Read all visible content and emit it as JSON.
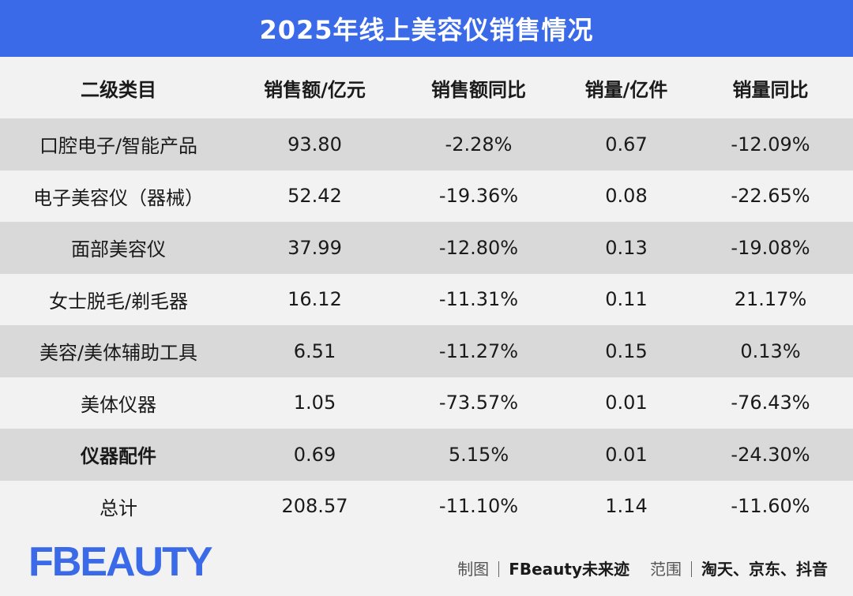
{
  "chart_data": {
    "type": "table",
    "title": "2025年线上美容仪销售情况",
    "columns": [
      "二级类目",
      "销售额/亿元",
      "销售额同比",
      "销量/亿件",
      "销量同比"
    ],
    "rows": [
      {
        "category": "口腔电子/智能产品",
        "sales": "93.80",
        "sales_yoy": "-2.28%",
        "volume": "0.67",
        "volume_yoy": "-12.09%"
      },
      {
        "category": "电子美容仪（器械）",
        "sales": "52.42",
        "sales_yoy": "-19.36%",
        "volume": "0.08",
        "volume_yoy": "-22.65%"
      },
      {
        "category": "面部美容仪",
        "sales": "37.99",
        "sales_yoy": "-12.80%",
        "volume": "0.13",
        "volume_yoy": "-19.08%"
      },
      {
        "category": "女士脱毛/剃毛器",
        "sales": "16.12",
        "sales_yoy": "-11.31%",
        "volume": "0.11",
        "volume_yoy": "21.17%"
      },
      {
        "category": "美容/美体辅助工具",
        "sales": "6.51",
        "sales_yoy": "-11.27%",
        "volume": "0.15",
        "volume_yoy": "0.13%"
      },
      {
        "category": "美体仪器",
        "sales": "1.05",
        "sales_yoy": "-73.57%",
        "volume": "0.01",
        "volume_yoy": "-76.43%"
      },
      {
        "category": "仪器配件",
        "sales": "0.69",
        "sales_yoy": "5.15%",
        "volume": "0.01",
        "volume_yoy": "-24.30%"
      },
      {
        "category": "总计",
        "sales": "208.57",
        "sales_yoy": "-11.10%",
        "volume": "1.14",
        "volume_yoy": "-11.60%"
      }
    ]
  },
  "footer": {
    "logo_text": "FBEAUTY",
    "credit_label": "制图",
    "credit_value": "FBeauty未来迹",
    "source_label": "范围",
    "source_value": "淘天、京东、抖音"
  },
  "colors": {
    "accent": "#3a6ae8",
    "stripe": "#d9d9d9",
    "background": "#f2f2f2"
  }
}
